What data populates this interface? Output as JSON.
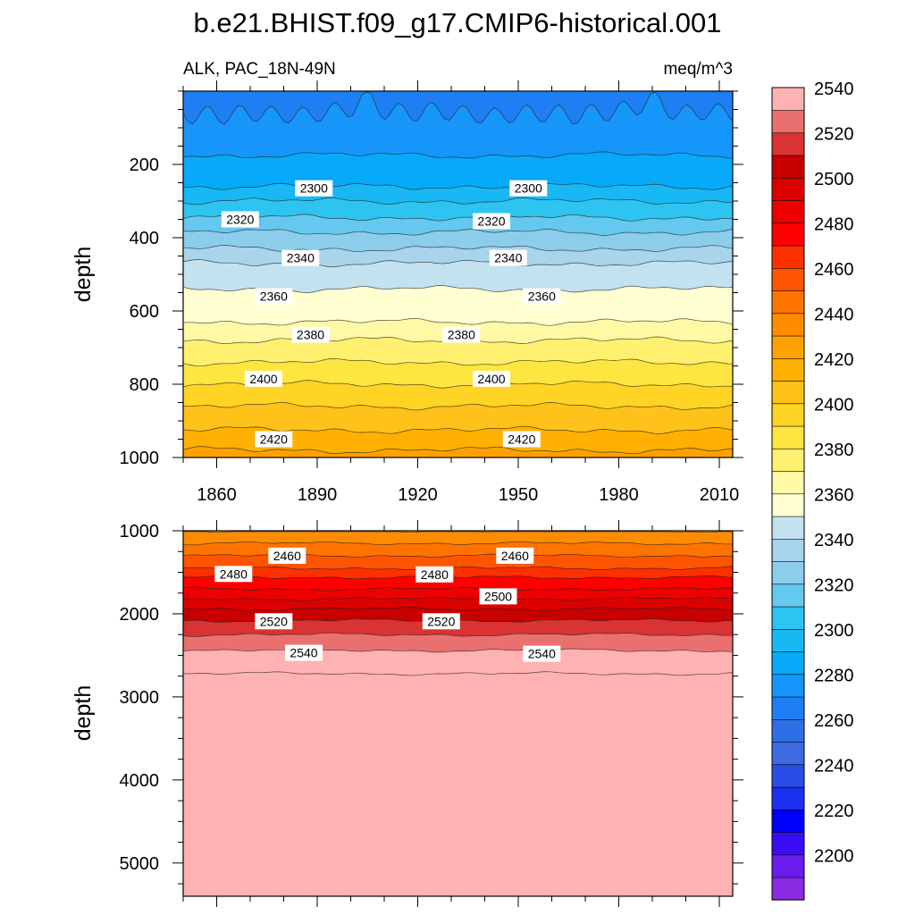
{
  "title": "b.e21.BHIST.f09_g17.CMIP6-historical.001",
  "chart_data": [
    {
      "type": "contour",
      "panel": "upper",
      "left_label": "ALK, PAC_18N-49N",
      "right_label": "meq/m^3",
      "ylabel": "depth",
      "xlim": [
        1850,
        2014
      ],
      "ylim": [
        0,
        1000
      ],
      "y_reversed": true,
      "xticks": [
        1860,
        1890,
        1920,
        1950,
        1980,
        2010
      ],
      "xtick_labels": [
        "1860",
        "1890",
        "1920",
        "1950",
        "1980",
        "2010"
      ],
      "yticks": [
        200,
        400,
        600,
        800,
        1000
      ],
      "ytick_labels": [
        "200",
        "400",
        "600",
        "800",
        "1000"
      ],
      "contour_levels": [
        2280,
        2290,
        2300,
        2310,
        2320,
        2330,
        2340,
        2350,
        2360,
        2370,
        2380,
        2390,
        2400,
        2410,
        2420,
        2430
      ],
      "level_depths": [
        60,
        175,
        260,
        300,
        345,
        385,
        430,
        470,
        540,
        630,
        680,
        740,
        800,
        860,
        925,
        980
      ],
      "contour_labels": [
        {
          "text": "2300",
          "year": 1889,
          "depth": 265
        },
        {
          "text": "2300",
          "year": 1953,
          "depth": 265
        },
        {
          "text": "2320",
          "year": 1867,
          "depth": 350
        },
        {
          "text": "2320",
          "year": 1942,
          "depth": 355
        },
        {
          "text": "2340",
          "year": 1885,
          "depth": 455
        },
        {
          "text": "2340",
          "year": 1947,
          "depth": 455
        },
        {
          "text": "2360",
          "year": 1877,
          "depth": 560
        },
        {
          "text": "2360",
          "year": 1957,
          "depth": 560
        },
        {
          "text": "2380",
          "year": 1888,
          "depth": 665
        },
        {
          "text": "2380",
          "year": 1933,
          "depth": 665
        },
        {
          "text": "2400",
          "year": 1874,
          "depth": 785
        },
        {
          "text": "2400",
          "year": 1942,
          "depth": 785
        },
        {
          "text": "2420",
          "year": 1877,
          "depth": 950
        },
        {
          "text": "2420",
          "year": 1951,
          "depth": 950
        }
      ]
    },
    {
      "type": "contour",
      "panel": "lower",
      "ylabel": "depth",
      "xlim": [
        1850,
        2014
      ],
      "ylim": [
        1000,
        5400
      ],
      "y_reversed": true,
      "yticks": [
        1000,
        2000,
        3000,
        4000,
        5000
      ],
      "ytick_labels": [
        "1000",
        "2000",
        "3000",
        "4000",
        "5000"
      ],
      "contour_levels": [
        2440,
        2450,
        2460,
        2470,
        2480,
        2490,
        2500,
        2510,
        2520,
        2530,
        2540,
        2550
      ],
      "level_depths": [
        1000,
        1150,
        1300,
        1450,
        1560,
        1700,
        1820,
        1940,
        2080,
        2250,
        2440,
        2720
      ],
      "contour_labels": [
        {
          "text": "2460",
          "year": 1881,
          "depth": 1300
        },
        {
          "text": "2460",
          "year": 1949,
          "depth": 1300
        },
        {
          "text": "2480",
          "year": 1865,
          "depth": 1520
        },
        {
          "text": "2480",
          "year": 1925,
          "depth": 1525
        },
        {
          "text": "2500",
          "year": 1944,
          "depth": 1790
        },
        {
          "text": "2520",
          "year": 1877,
          "depth": 2090
        },
        {
          "text": "2520",
          "year": 1927,
          "depth": 2090
        },
        {
          "text": "2540",
          "year": 1886,
          "depth": 2470
        },
        {
          "text": "2540",
          "year": 1957,
          "depth": 2480
        }
      ]
    }
  ],
  "colorbar": {
    "tick_labels": [
      "2200",
      "2220",
      "2240",
      "2260",
      "2280",
      "2300",
      "2320",
      "2340",
      "2360",
      "2380",
      "2400",
      "2420",
      "2440",
      "2460",
      "2480",
      "2500",
      "2520",
      "2540"
    ],
    "colors": [
      "#8a2be2",
      "#6a1cf0",
      "#3a0cf5",
      "#0000ff",
      "#1c30f0",
      "#2a4de5",
      "#3d6ae0",
      "#2e6fe8",
      "#1e7ff5",
      "#1696fa",
      "#06aaf8",
      "#18b8f5",
      "#2ec4f2",
      "#64c8ef",
      "#8ccdeb",
      "#a8d4ec",
      "#c3e2f0",
      "#ffffd2",
      "#fff9a6",
      "#fff070",
      "#ffe540",
      "#ffd424",
      "#ffc21a",
      "#ffb000",
      "#ffa100",
      "#ff8c00",
      "#ff7300",
      "#ff5500",
      "#ff3000",
      "#ff0000",
      "#ec0000",
      "#dc0000",
      "#c80000",
      "#d93333",
      "#ea7070",
      "#ffb2b2"
    ]
  }
}
